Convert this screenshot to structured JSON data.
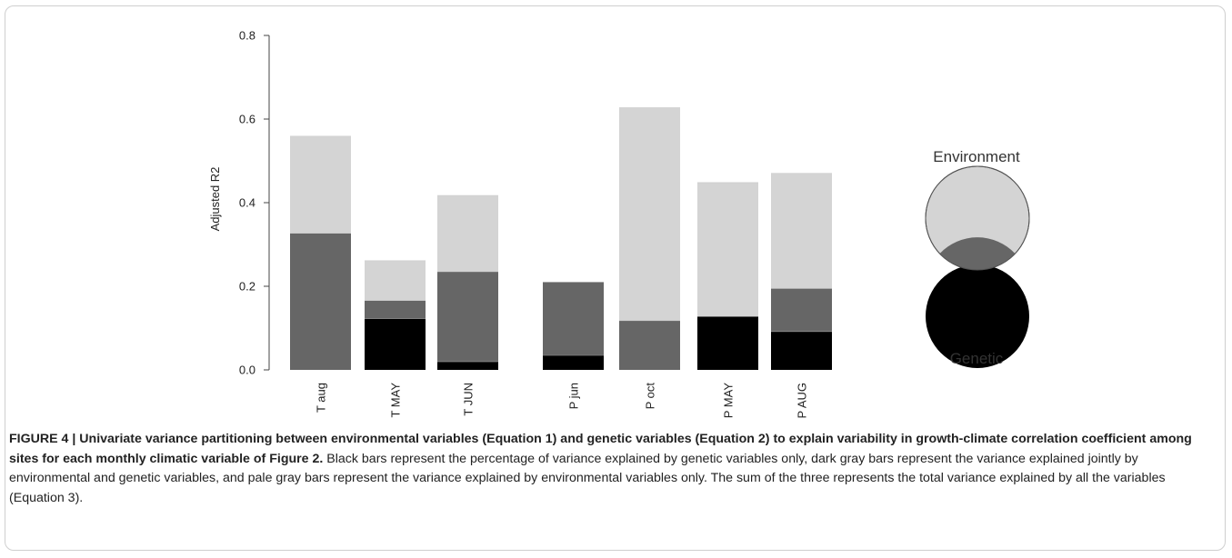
{
  "chart_data": {
    "type": "bar",
    "stacked": true,
    "ylabel": "Adjusted R2",
    "ylim": [
      0,
      0.8
    ],
    "yticks": [
      "0.0",
      "0.2",
      "0.4",
      "0.6",
      "0.8"
    ],
    "categories": [
      "T aug",
      "T MAY",
      "T JUN",
      "P jun",
      "P oct",
      "P MAY",
      "P AUG"
    ],
    "series": [
      {
        "name": "Genetic",
        "color": "#000000",
        "values": [
          0.0,
          0.123,
          0.02,
          0.035,
          0.0,
          0.128,
          0.092
        ]
      },
      {
        "name": "",
        "color": "#666666",
        "values": [
          0.327,
          0.043,
          0.215,
          0.175,
          0.118,
          0.0,
          0.103
        ]
      },
      {
        "name": "Environment",
        "color": "#d4d4d4",
        "values": [
          0.232,
          0.095,
          0.182,
          0.0,
          0.509,
          0.32,
          0.275
        ]
      }
    ]
  },
  "legend": {
    "environment_label": "Environment",
    "genetic_label": "Genetic"
  },
  "caption": {
    "bold": "FIGURE 4 | Univariate variance partitioning between environmental variables (Equation 1) and genetic variables (Equation 2) to explain variability in growth-climate correlation coefficient among sites for each monthly climatic variable of Figure 2.",
    "text": " Black bars represent the percentage of variance explained by genetic variables only, dark gray bars represent the variance explained jointly by environmental and genetic variables, and pale gray bars represent the variance explained by environmental variables only. The sum of the three represents the total variance explained by all the variables (Equation 3)."
  }
}
